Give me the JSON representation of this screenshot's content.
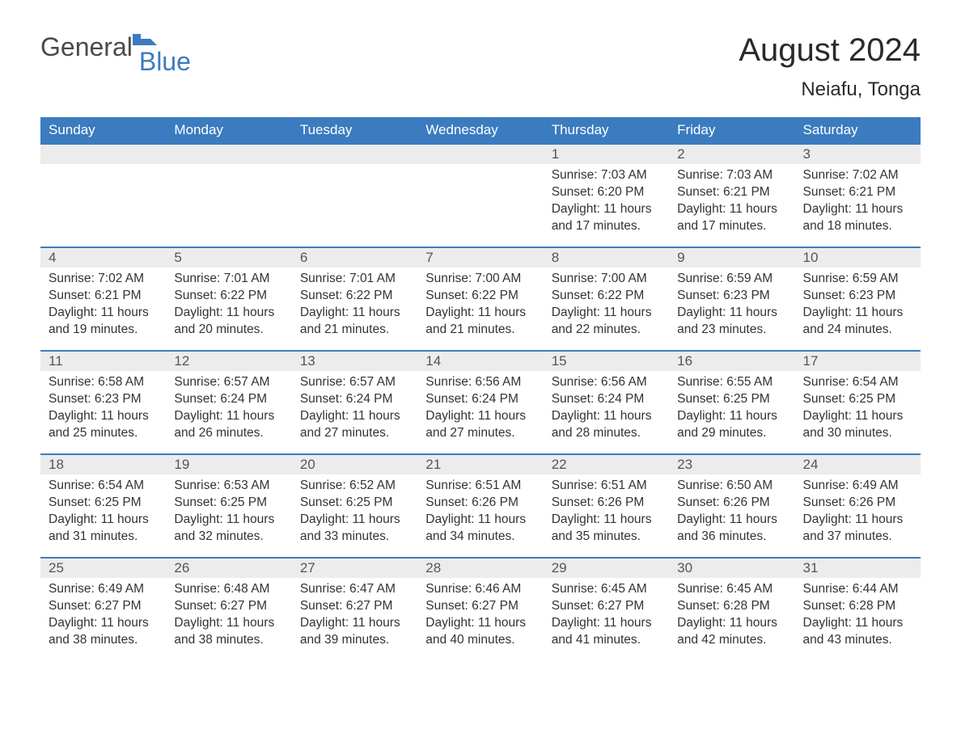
{
  "logo": {
    "part1": "General",
    "part2": "Blue"
  },
  "title": "August 2024",
  "location": "Neiafu, Tonga",
  "colors": {
    "header_bg": "#3b7bbf",
    "header_text": "#ffffff",
    "day_num_bg": "#ececec",
    "cell_border": "#3b7bbf",
    "body_text": "#333333",
    "logo_blue": "#3b7bbf",
    "logo_gray": "#4a4a4a"
  },
  "weekdays": [
    "Sunday",
    "Monday",
    "Tuesday",
    "Wednesday",
    "Thursday",
    "Friday",
    "Saturday"
  ],
  "first_weekday_index": 4,
  "days": [
    {
      "n": 1,
      "sunrise": "7:03 AM",
      "sunset": "6:20 PM",
      "daylight": "11 hours and 17 minutes."
    },
    {
      "n": 2,
      "sunrise": "7:03 AM",
      "sunset": "6:21 PM",
      "daylight": "11 hours and 17 minutes."
    },
    {
      "n": 3,
      "sunrise": "7:02 AM",
      "sunset": "6:21 PM",
      "daylight": "11 hours and 18 minutes."
    },
    {
      "n": 4,
      "sunrise": "7:02 AM",
      "sunset": "6:21 PM",
      "daylight": "11 hours and 19 minutes."
    },
    {
      "n": 5,
      "sunrise": "7:01 AM",
      "sunset": "6:22 PM",
      "daylight": "11 hours and 20 minutes."
    },
    {
      "n": 6,
      "sunrise": "7:01 AM",
      "sunset": "6:22 PM",
      "daylight": "11 hours and 21 minutes."
    },
    {
      "n": 7,
      "sunrise": "7:00 AM",
      "sunset": "6:22 PM",
      "daylight": "11 hours and 21 minutes."
    },
    {
      "n": 8,
      "sunrise": "7:00 AM",
      "sunset": "6:22 PM",
      "daylight": "11 hours and 22 minutes."
    },
    {
      "n": 9,
      "sunrise": "6:59 AM",
      "sunset": "6:23 PM",
      "daylight": "11 hours and 23 minutes."
    },
    {
      "n": 10,
      "sunrise": "6:59 AM",
      "sunset": "6:23 PM",
      "daylight": "11 hours and 24 minutes."
    },
    {
      "n": 11,
      "sunrise": "6:58 AM",
      "sunset": "6:23 PM",
      "daylight": "11 hours and 25 minutes."
    },
    {
      "n": 12,
      "sunrise": "6:57 AM",
      "sunset": "6:24 PM",
      "daylight": "11 hours and 26 minutes."
    },
    {
      "n": 13,
      "sunrise": "6:57 AM",
      "sunset": "6:24 PM",
      "daylight": "11 hours and 27 minutes."
    },
    {
      "n": 14,
      "sunrise": "6:56 AM",
      "sunset": "6:24 PM",
      "daylight": "11 hours and 27 minutes."
    },
    {
      "n": 15,
      "sunrise": "6:56 AM",
      "sunset": "6:24 PM",
      "daylight": "11 hours and 28 minutes."
    },
    {
      "n": 16,
      "sunrise": "6:55 AM",
      "sunset": "6:25 PM",
      "daylight": "11 hours and 29 minutes."
    },
    {
      "n": 17,
      "sunrise": "6:54 AM",
      "sunset": "6:25 PM",
      "daylight": "11 hours and 30 minutes."
    },
    {
      "n": 18,
      "sunrise": "6:54 AM",
      "sunset": "6:25 PM",
      "daylight": "11 hours and 31 minutes."
    },
    {
      "n": 19,
      "sunrise": "6:53 AM",
      "sunset": "6:25 PM",
      "daylight": "11 hours and 32 minutes."
    },
    {
      "n": 20,
      "sunrise": "6:52 AM",
      "sunset": "6:25 PM",
      "daylight": "11 hours and 33 minutes."
    },
    {
      "n": 21,
      "sunrise": "6:51 AM",
      "sunset": "6:26 PM",
      "daylight": "11 hours and 34 minutes."
    },
    {
      "n": 22,
      "sunrise": "6:51 AM",
      "sunset": "6:26 PM",
      "daylight": "11 hours and 35 minutes."
    },
    {
      "n": 23,
      "sunrise": "6:50 AM",
      "sunset": "6:26 PM",
      "daylight": "11 hours and 36 minutes."
    },
    {
      "n": 24,
      "sunrise": "6:49 AM",
      "sunset": "6:26 PM",
      "daylight": "11 hours and 37 minutes."
    },
    {
      "n": 25,
      "sunrise": "6:49 AM",
      "sunset": "6:27 PM",
      "daylight": "11 hours and 38 minutes."
    },
    {
      "n": 26,
      "sunrise": "6:48 AM",
      "sunset": "6:27 PM",
      "daylight": "11 hours and 38 minutes."
    },
    {
      "n": 27,
      "sunrise": "6:47 AM",
      "sunset": "6:27 PM",
      "daylight": "11 hours and 39 minutes."
    },
    {
      "n": 28,
      "sunrise": "6:46 AM",
      "sunset": "6:27 PM",
      "daylight": "11 hours and 40 minutes."
    },
    {
      "n": 29,
      "sunrise": "6:45 AM",
      "sunset": "6:27 PM",
      "daylight": "11 hours and 41 minutes."
    },
    {
      "n": 30,
      "sunrise": "6:45 AM",
      "sunset": "6:28 PM",
      "daylight": "11 hours and 42 minutes."
    },
    {
      "n": 31,
      "sunrise": "6:44 AM",
      "sunset": "6:28 PM",
      "daylight": "11 hours and 43 minutes."
    }
  ],
  "labels": {
    "sunrise": "Sunrise:",
    "sunset": "Sunset:",
    "daylight": "Daylight:"
  }
}
